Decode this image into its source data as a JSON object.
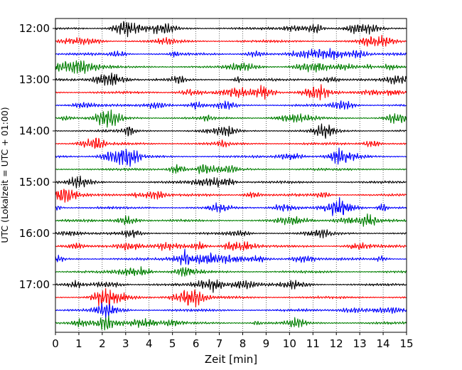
{
  "chart_data": {
    "type": "line",
    "title": "",
    "xlabel": "Zeit  [min]",
    "ylabel": "UTC (Lokalzeit = UTC + 01:00)",
    "xlim": [
      0,
      15
    ],
    "x_ticks": [
      "0",
      "1",
      "2",
      "3",
      "4",
      "5",
      "6",
      "7",
      "8",
      "9",
      "10",
      "11",
      "12",
      "13",
      "14",
      "15"
    ],
    "y_tick_labels": [
      "12:00",
      "13:00",
      "14:00",
      "15:00",
      "16:00",
      "17:00"
    ],
    "grid": "vertical dotted at each minute",
    "trace_interval_minutes": 15,
    "trace_start_times": [
      "12:00",
      "12:15",
      "12:30",
      "12:45",
      "13:00",
      "13:15",
      "13:30",
      "13:45",
      "14:00",
      "14:15",
      "14:30",
      "14:45",
      "15:00",
      "15:15",
      "15:30",
      "15:45",
      "16:00",
      "16:15",
      "16:30",
      "16:45",
      "17:00",
      "17:15",
      "17:30",
      "17:45"
    ],
    "trace_color_cycle": [
      "#000000",
      "#ff0000",
      "#0000ff",
      "#007f00"
    ]
  }
}
